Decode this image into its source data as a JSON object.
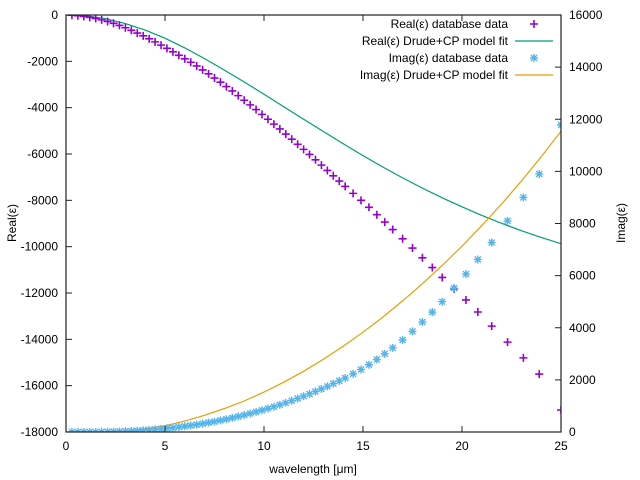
{
  "chart_data": {
    "type": "scatter",
    "title": "",
    "xlabel": "wavelength [μm]",
    "ylabel": "Real(ε)",
    "y2label": "Imag(ε)",
    "xlim": [
      0,
      25
    ],
    "ylim": [
      -18000,
      0
    ],
    "y2lim": [
      0,
      16000
    ],
    "xticks": [
      "0",
      "5",
      "10",
      "15",
      "20",
      "25"
    ],
    "yticks": [
      "0",
      "-2000",
      "-4000",
      "-6000",
      "-8000",
      "-10000",
      "-12000",
      "-14000",
      "-16000",
      "-18000"
    ],
    "y2ticks": [
      "0",
      "2000",
      "4000",
      "6000",
      "8000",
      "10000",
      "12000",
      "14000",
      "16000"
    ],
    "grid": false,
    "legend_position": "top-right",
    "colors": {
      "real_data": "#9400d3",
      "real_fit": "#009e73",
      "imag_data": "#56b4e9",
      "imag_fit": "#e69f00"
    },
    "series": [
      {
        "name": "Real(ε) database data",
        "axis": "left",
        "style": "points-plus",
        "x": [
          0.3,
          0.6,
          0.9,
          1.2,
          1.5,
          1.8,
          2.1,
          2.4,
          2.7,
          3.0,
          3.3,
          3.6,
          3.9,
          4.2,
          4.5,
          4.8,
          5.1,
          5.4,
          5.7,
          6.0,
          6.3,
          6.6,
          6.9,
          7.2,
          7.5,
          7.8,
          8.1,
          8.4,
          8.7,
          9.0,
          9.3,
          9.6,
          9.9,
          10.2,
          10.5,
          10.8,
          11.1,
          11.4,
          11.7,
          12.0,
          12.3,
          12.6,
          12.9,
          13.2,
          13.5,
          13.8,
          14.1,
          14.5,
          14.9,
          15.3,
          15.7,
          16.1,
          16.5,
          17.0,
          17.5,
          18.0,
          18.5,
          19.0,
          19.6,
          20.2,
          20.8,
          21.5,
          22.3,
          23.1,
          23.9,
          25.0
        ],
        "y": [
          -10,
          -30,
          -60,
          -100,
          -150,
          -210,
          -280,
          -360,
          -450,
          -550,
          -660,
          -780,
          -900,
          -1030,
          -1160,
          -1300,
          -1440,
          -1590,
          -1740,
          -1890,
          -2040,
          -2200,
          -2370,
          -2540,
          -2720,
          -2900,
          -3090,
          -3280,
          -3480,
          -3680,
          -3880,
          -4080,
          -4290,
          -4500,
          -4710,
          -4920,
          -5140,
          -5360,
          -5580,
          -5800,
          -6020,
          -6250,
          -6480,
          -6710,
          -6940,
          -7170,
          -7400,
          -7700,
          -8000,
          -8300,
          -8620,
          -8940,
          -9260,
          -9660,
          -10060,
          -10480,
          -10900,
          -11330,
          -11820,
          -12300,
          -12820,
          -13430,
          -14120,
          -14800,
          -15500,
          -17050
        ]
      },
      {
        "name": "Real(ε) Drude+CP model fit",
        "axis": "left",
        "style": "line",
        "x": [
          0,
          1,
          2,
          3,
          4,
          5,
          6,
          7,
          8,
          9,
          10,
          11,
          12,
          13,
          14,
          15,
          16,
          17,
          18,
          19,
          20,
          21,
          22,
          23,
          24,
          25
        ],
        "y": [
          0,
          -40,
          -160,
          -370,
          -650,
          -1000,
          -1420,
          -1880,
          -2380,
          -2890,
          -3420,
          -3960,
          -4500,
          -5030,
          -5560,
          -6070,
          -6560,
          -7030,
          -7470,
          -7890,
          -8280,
          -8650,
          -8990,
          -9310,
          -9600,
          -9870
        ]
      },
      {
        "name": "Imag(ε) database data",
        "axis": "right",
        "style": "points-star",
        "x": [
          0.3,
          0.6,
          0.9,
          1.2,
          1.5,
          1.8,
          2.1,
          2.4,
          2.7,
          3.0,
          3.3,
          3.6,
          3.9,
          4.2,
          4.5,
          4.8,
          5.1,
          5.4,
          5.7,
          6.0,
          6.3,
          6.6,
          6.9,
          7.2,
          7.5,
          7.8,
          8.1,
          8.4,
          8.7,
          9.0,
          9.3,
          9.6,
          9.9,
          10.2,
          10.5,
          10.8,
          11.1,
          11.4,
          11.7,
          12.0,
          12.3,
          12.6,
          12.9,
          13.2,
          13.5,
          13.8,
          14.1,
          14.5,
          14.9,
          15.3,
          15.7,
          16.1,
          16.5,
          17.0,
          17.5,
          18.0,
          18.5,
          19.0,
          19.6,
          20.2,
          20.8,
          21.5,
          22.3,
          23.1,
          23.9,
          25.0
        ],
        "y": [
          0,
          0,
          0,
          0,
          0,
          5,
          10,
          15,
          20,
          30,
          40,
          50,
          65,
          80,
          100,
          120,
          140,
          165,
          190,
          220,
          250,
          285,
          320,
          360,
          400,
          445,
          490,
          540,
          595,
          650,
          710,
          770,
          835,
          900,
          970,
          1045,
          1120,
          1200,
          1285,
          1370,
          1460,
          1555,
          1650,
          1750,
          1855,
          1960,
          2070,
          2230,
          2400,
          2580,
          2780,
          3000,
          3230,
          3530,
          3860,
          4220,
          4600,
          5000,
          5520,
          6060,
          6620,
          7270,
          8100,
          9000,
          9900,
          11780
        ]
      },
      {
        "name": "Imag(ε) Drude+CP model fit",
        "axis": "right",
        "style": "line",
        "x": [
          0,
          1,
          2,
          3,
          4,
          5,
          6,
          7,
          8,
          9,
          10,
          11,
          12,
          13,
          14,
          15,
          16,
          17,
          18,
          19,
          20,
          21,
          22,
          23,
          24,
          25
        ],
        "y": [
          0,
          2,
          10,
          40,
          110,
          240,
          420,
          640,
          900,
          1190,
          1530,
          1910,
          2330,
          2790,
          3290,
          3830,
          4410,
          5030,
          5690,
          6390,
          7130,
          7920,
          8750,
          9630,
          10560,
          11540
        ]
      }
    ]
  }
}
